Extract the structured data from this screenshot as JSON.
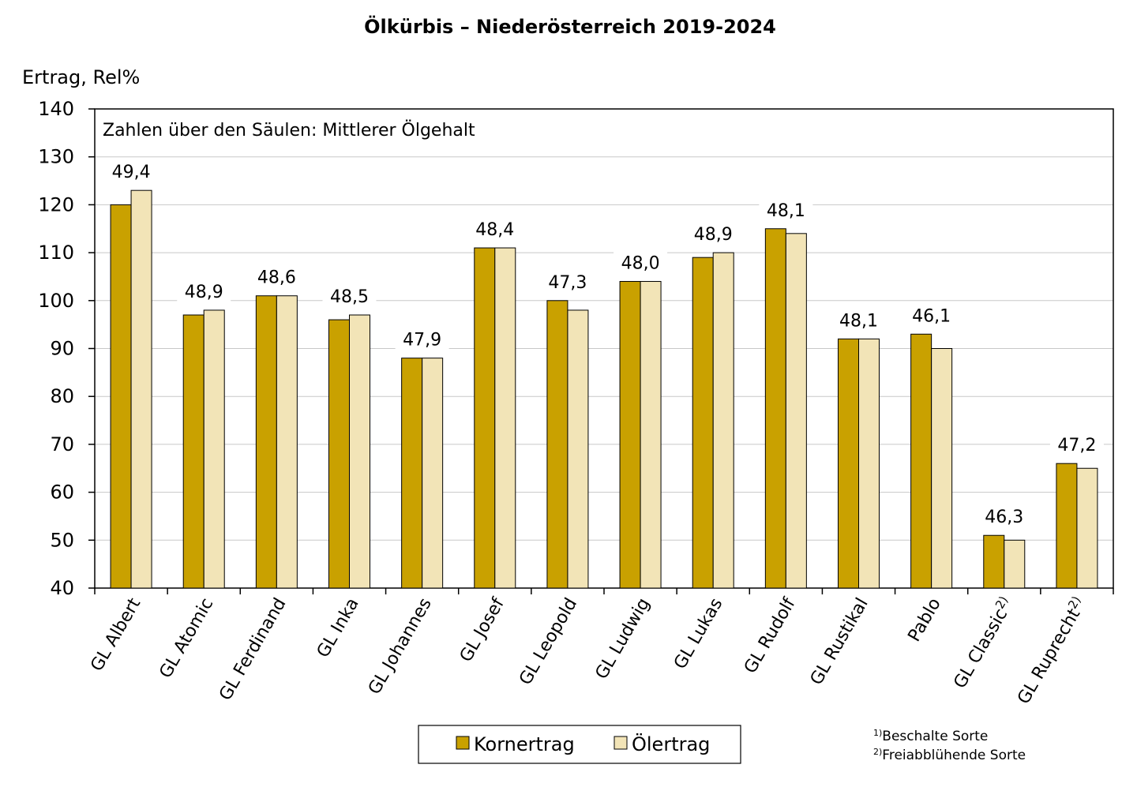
{
  "chart_data": {
    "type": "bar",
    "title": "Ölkürbis – Niederösterreich 2019-2024",
    "ylabel": "Ertrag, Rel%",
    "ylim": [
      40,
      140
    ],
    "yticks": [
      40,
      50,
      60,
      70,
      80,
      90,
      100,
      110,
      120,
      130,
      140
    ],
    "grid": true,
    "legend_position": "bottom-center",
    "annotation": "Zahlen über den Säulen: Mittlerer Ölgehalt",
    "categories": [
      "GL Albert",
      "GL Atomic",
      "GL Ferdinand",
      "GL Inka",
      "GL Johannes",
      "GL Josef",
      "GL Leopold",
      "GL Ludwig",
      "GL Lukas",
      "GL Rudolf",
      "GL Rustikal",
      "Pablo",
      "GL Classic",
      "GL Ruprecht"
    ],
    "category_superscripts": [
      "",
      "",
      "",
      "",
      "",
      "",
      "",
      "",
      "",
      "",
      "",
      "",
      "2)",
      "2)"
    ],
    "series": [
      {
        "name": "Kornertrag",
        "color": "#C9A100",
        "values": [
          120,
          97,
          101,
          96,
          88,
          111,
          100,
          104,
          109,
          115,
          92,
          93,
          51,
          66
        ]
      },
      {
        "name": "Ölertrag",
        "color": "#F2E4B7",
        "values": [
          123,
          98,
          101,
          97,
          88,
          111,
          98,
          104,
          110,
          114,
          92,
          90,
          50,
          65
        ]
      }
    ],
    "data_labels": [
      "49,4",
      "48,9",
      "48,6",
      "48,5",
      "47,9",
      "48,4",
      "47,3",
      "48,0",
      "48,9",
      "48,1",
      "48,1",
      "46,1",
      "46,3",
      "47,2"
    ],
    "footnotes": [
      {
        "sup": "1)",
        "text": "Beschalte Sorte"
      },
      {
        "sup": "2)",
        "text": "Freiabblühende Sorte"
      }
    ]
  }
}
